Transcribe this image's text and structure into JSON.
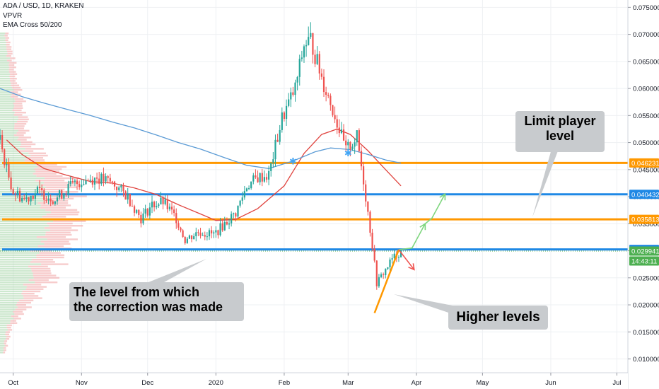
{
  "header": {
    "symbol": "ADA / USD, 1D, KRAKEN",
    "indicator_1": "VPVR",
    "indicator_2": "EMA Cross 50/200"
  },
  "annotations": {
    "limit_player": [
      "Limit player",
      "level"
    ],
    "correction_level": [
      "The level from which",
      "the correction was made"
    ],
    "higher_levels": "Higher levels"
  },
  "colors": {
    "up": "#26a69a",
    "down": "#ef5350",
    "ema50": "#e0443f",
    "ema200": "#5b9bd5",
    "orange_level": "#ff9800",
    "blue_level": "#1e88e5",
    "last_price": "#4caf50",
    "grid": "#eef0f3",
    "text": "#131722"
  },
  "chart_data": {
    "type": "candlestick",
    "title": "ADA / USD, 1D, KRAKEN",
    "y_axis": {
      "min": 0.0085,
      "max": 0.0757,
      "ticks": [
        "0.010000",
        "0.015000",
        "0.020000",
        "0.025000",
        "0.030000",
        "0.035000",
        "0.040000",
        "0.045000",
        "0.050000",
        "0.055000",
        "0.060000",
        "0.065000",
        "0.070000",
        "0.075000"
      ]
    },
    "x_axis": {
      "start": "2019-09-25",
      "end": "2020-07-06",
      "ticks": [
        {
          "label": "Oct",
          "date": "2019-10-01"
        },
        {
          "label": "Nov",
          "date": "2019-11-01"
        },
        {
          "label": "Dec",
          "date": "2019-12-01"
        },
        {
          "label": "2020",
          "date": "2020-01-01"
        },
        {
          "label": "Feb",
          "date": "2020-02-01"
        },
        {
          "label": "Mar",
          "date": "2020-03-01"
        },
        {
          "label": "Apr",
          "date": "2020-04-01"
        },
        {
          "label": "May",
          "date": "2020-05-01"
        },
        {
          "label": "Jun",
          "date": "2020-06-01"
        },
        {
          "label": "Jul",
          "date": "2020-07-01"
        }
      ]
    },
    "price_anchors": [
      [
        "2019-09-25",
        0.0505
      ],
      [
        "2019-09-28",
        0.045
      ],
      [
        "2019-10-01",
        0.041
      ],
      [
        "2019-10-06",
        0.0395
      ],
      [
        "2019-10-12",
        0.041
      ],
      [
        "2019-10-20",
        0.0395
      ],
      [
        "2019-10-27",
        0.042
      ],
      [
        "2019-11-02",
        0.043
      ],
      [
        "2019-11-08",
        0.0435
      ],
      [
        "2019-11-15",
        0.0425
      ],
      [
        "2019-11-22",
        0.04
      ],
      [
        "2019-11-28",
        0.036
      ],
      [
        "2019-12-03",
        0.0385
      ],
      [
        "2019-12-08",
        0.039
      ],
      [
        "2019-12-14",
        0.036
      ],
      [
        "2019-12-18",
        0.032
      ],
      [
        "2019-12-24",
        0.0335
      ],
      [
        "2019-12-31",
        0.033
      ],
      [
        "2020-01-05",
        0.035
      ],
      [
        "2020-01-10",
        0.037
      ],
      [
        "2020-01-15",
        0.042
      ],
      [
        "2020-01-20",
        0.0435
      ],
      [
        "2020-01-25",
        0.044
      ],
      [
        "2020-01-31",
        0.0545
      ],
      [
        "2020-02-06",
        0.06
      ],
      [
        "2020-02-10",
        0.068
      ],
      [
        "2020-02-13",
        0.069
      ],
      [
        "2020-02-18",
        0.062
      ],
      [
        "2020-02-24",
        0.055
      ],
      [
        "2020-02-29",
        0.0485
      ],
      [
        "2020-03-05",
        0.051
      ],
      [
        "2020-03-08",
        0.043
      ],
      [
        "2020-03-12",
        0.031
      ],
      [
        "2020-03-14",
        0.024
      ],
      [
        "2020-03-18",
        0.0265
      ],
      [
        "2020-03-21",
        0.0285
      ],
      [
        "2020-03-25",
        0.0299
      ]
    ],
    "series": [
      {
        "name": "EMA 50",
        "x": [
          "2019-09-28",
          "2019-10-05",
          "2019-10-15",
          "2019-10-25",
          "2019-11-05",
          "2019-11-15",
          "2019-11-25",
          "2019-12-05",
          "2019-12-15",
          "2019-12-25",
          "2020-01-01",
          "2020-01-10",
          "2020-01-20",
          "2020-02-01",
          "2020-02-10",
          "2020-02-18",
          "2020-02-25",
          "2020-03-02",
          "2020-03-10",
          "2020-03-18",
          "2020-03-25"
        ],
        "y": [
          0.0505,
          0.0478,
          0.0452,
          0.044,
          0.0428,
          0.0425,
          0.0416,
          0.0404,
          0.0385,
          0.0368,
          0.0356,
          0.0358,
          0.0378,
          0.042,
          0.048,
          0.0515,
          0.0525,
          0.0515,
          0.0485,
          0.045,
          0.042
        ]
      },
      {
        "name": "EMA 200",
        "x": [
          "2019-09-25",
          "2019-10-05",
          "2019-10-15",
          "2019-10-25",
          "2019-11-05",
          "2019-11-15",
          "2019-11-25",
          "2019-12-05",
          "2019-12-15",
          "2019-12-25",
          "2020-01-05",
          "2020-01-15",
          "2020-01-25",
          "2020-02-05",
          "2020-02-15",
          "2020-02-22",
          "2020-03-02",
          "2020-03-10",
          "2020-03-18",
          "2020-03-25"
        ],
        "y": [
          0.06,
          0.0585,
          0.0573,
          0.0562,
          0.055,
          0.0538,
          0.0527,
          0.0514,
          0.05,
          0.0488,
          0.0472,
          0.0458,
          0.0452,
          0.0466,
          0.0483,
          0.049,
          0.0487,
          0.0478,
          0.0468,
          0.0462
        ]
      }
    ],
    "levels": [
      {
        "value": 0.046231,
        "label": "0.046231",
        "color": "#ff9800"
      },
      {
        "value": 0.040432,
        "label": "0.040432",
        "color": "#1e88e5"
      },
      {
        "value": 0.035813,
        "label": "0.035813",
        "color": "#ff9800"
      },
      {
        "value": 0.030251,
        "label": "0.030251",
        "color": "#1e88e5"
      }
    ],
    "last_price": {
      "value": 0.029941,
      "label": "0.029941",
      "countdown": "14:43:11"
    },
    "cross_markers": [
      [
        "2020-02-05",
        0.0465
      ],
      [
        "2020-03-01",
        0.048
      ]
    ],
    "support_line": [
      [
        "2020-03-13",
        0.0185
      ],
      [
        "2020-03-24",
        0.0302
      ]
    ],
    "projection_up": [
      [
        "2020-03-24",
        0.0302
      ],
      [
        "2020-03-30",
        0.0305
      ],
      [
        "2020-04-05",
        0.035
      ],
      [
        "2020-04-08",
        0.036
      ],
      [
        "2020-04-14",
        0.0405
      ]
    ],
    "projection_down": [
      [
        "2020-03-24",
        0.0302
      ],
      [
        "2020-03-31",
        0.0265
      ]
    ]
  }
}
